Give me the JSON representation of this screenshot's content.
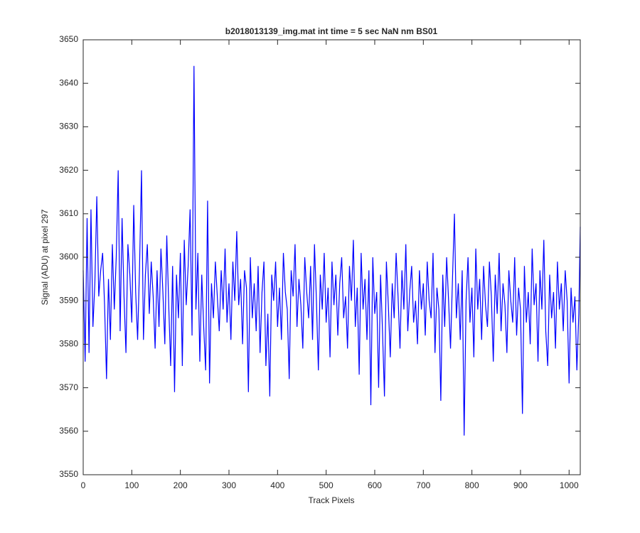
{
  "chart_data": {
    "type": "line",
    "title": "b2018013139_img.mat int time = 5 sec  NaN nm BS01",
    "x_label": "Track Pixels",
    "y_label": "Signal (ADU) at pixel 297",
    "xlim": [
      0,
      1023
    ],
    "ylim": [
      3550,
      3650
    ],
    "xticks": [
      0,
      100,
      200,
      300,
      400,
      500,
      600,
      700,
      800,
      900,
      1000
    ],
    "yticks": [
      3550,
      3560,
      3570,
      3580,
      3590,
      3600,
      3610,
      3620,
      3630,
      3640,
      3650
    ],
    "grid": false,
    "series": [
      {
        "color": "#0000ff",
        "x": [
          0,
          4,
          8,
          12,
          16,
          20,
          24,
          28,
          32,
          36,
          40,
          44,
          48,
          52,
          56,
          60,
          64,
          68,
          72,
          76,
          80,
          84,
          88,
          92,
          96,
          100,
          104,
          108,
          112,
          116,
          120,
          124,
          128,
          132,
          136,
          140,
          144,
          148,
          152,
          156,
          160,
          164,
          168,
          172,
          176,
          180,
          184,
          188,
          192,
          196,
          200,
          204,
          208,
          212,
          216,
          220,
          224,
          228,
          232,
          236,
          240,
          244,
          248,
          252,
          256,
          260,
          264,
          268,
          272,
          276,
          280,
          284,
          288,
          292,
          296,
          300,
          304,
          308,
          312,
          316,
          320,
          324,
          328,
          332,
          336,
          340,
          344,
          348,
          352,
          356,
          360,
          364,
          368,
          372,
          376,
          380,
          384,
          388,
          392,
          396,
          400,
          404,
          408,
          412,
          416,
          420,
          424,
          428,
          432,
          436,
          440,
          444,
          448,
          452,
          456,
          460,
          464,
          468,
          472,
          476,
          480,
          484,
          488,
          492,
          496,
          500,
          504,
          508,
          512,
          516,
          520,
          524,
          528,
          532,
          536,
          540,
          544,
          548,
          552,
          556,
          560,
          564,
          568,
          572,
          576,
          580,
          584,
          588,
          592,
          596,
          600,
          604,
          608,
          612,
          616,
          620,
          624,
          628,
          632,
          636,
          640,
          644,
          648,
          652,
          656,
          660,
          664,
          668,
          672,
          676,
          680,
          684,
          688,
          692,
          696,
          700,
          704,
          708,
          712,
          716,
          720,
          724,
          728,
          732,
          736,
          740,
          744,
          748,
          752,
          756,
          760,
          764,
          768,
          772,
          776,
          780,
          784,
          788,
          792,
          796,
          800,
          804,
          808,
          812,
          816,
          820,
          824,
          828,
          832,
          836,
          840,
          844,
          848,
          852,
          856,
          860,
          864,
          868,
          872,
          876,
          880,
          884,
          888,
          892,
          896,
          900,
          904,
          908,
          912,
          916,
          920,
          924,
          928,
          932,
          936,
          940,
          944,
          948,
          952,
          956,
          960,
          964,
          968,
          972,
          976,
          980,
          984,
          988,
          992,
          996,
          1000,
          1004,
          1008,
          1012,
          1016,
          1020,
          1023
        ],
        "values": [
          3597,
          3576,
          3609,
          3578,
          3611,
          3584,
          3594,
          3614,
          3591,
          3597,
          3601,
          3589,
          3572,
          3595,
          3581,
          3603,
          3588,
          3600,
          3620,
          3583,
          3609,
          3591,
          3578,
          3603,
          3596,
          3585,
          3612,
          3592,
          3581,
          3598,
          3620,
          3581,
          3596,
          3603,
          3587,
          3599,
          3591,
          3579,
          3597,
          3584,
          3602,
          3592,
          3580,
          3605,
          3589,
          3575,
          3598,
          3569,
          3596,
          3586,
          3601,
          3575,
          3604,
          3589,
          3598,
          3611,
          3582,
          3644,
          3588,
          3601,
          3576,
          3596,
          3584,
          3574,
          3613,
          3571,
          3594,
          3586,
          3599,
          3591,
          3583,
          3597,
          3588,
          3602,
          3585,
          3594,
          3581,
          3599,
          3590,
          3606,
          3589,
          3595,
          3580,
          3597,
          3593,
          3569,
          3600,
          3586,
          3594,
          3583,
          3598,
          3578,
          3592,
          3599,
          3575,
          3587,
          3568,
          3596,
          3590,
          3599,
          3584,
          3593,
          3581,
          3601,
          3592,
          3588,
          3572,
          3597,
          3591,
          3603,
          3584,
          3595,
          3589,
          3579,
          3600,
          3592,
          3586,
          3598,
          3581,
          3603,
          3590,
          3574,
          3596,
          3588,
          3601,
          3585,
          3593,
          3577,
          3599,
          3589,
          3596,
          3582,
          3594,
          3600,
          3586,
          3591,
          3579,
          3598,
          3590,
          3604,
          3584,
          3593,
          3573,
          3601,
          3588,
          3595,
          3581,
          3597,
          3566,
          3600,
          3587,
          3592,
          3570,
          3596,
          3583,
          3568,
          3599,
          3589,
          3577,
          3594,
          3586,
          3601,
          3591,
          3579,
          3597,
          3588,
          3603,
          3583,
          3592,
          3598,
          3585,
          3590,
          3580,
          3597,
          3588,
          3594,
          3582,
          3599,
          3590,
          3586,
          3601,
          3578,
          3593,
          3588,
          3567,
          3596,
          3584,
          3600,
          3590,
          3579,
          3595,
          3610,
          3586,
          3594,
          3581,
          3597,
          3559,
          3590,
          3600,
          3585,
          3593,
          3577,
          3602,
          3588,
          3595,
          3581,
          3598,
          3589,
          3584,
          3599,
          3591,
          3576,
          3596,
          3587,
          3601,
          3583,
          3594,
          3589,
          3578,
          3597,
          3590,
          3585,
          3600,
          3582,
          3593,
          3588,
          3564,
          3598,
          3585,
          3592,
          3580,
          3602,
          3589,
          3594,
          3576,
          3597,
          3588,
          3604,
          3583,
          3575,
          3596,
          3586,
          3592,
          3579,
          3599,
          3588,
          3594,
          3583,
          3597,
          3590,
          3571,
          3593,
          3585,
          3591,
          3574,
          3587,
          3607
        ]
      }
    ]
  }
}
